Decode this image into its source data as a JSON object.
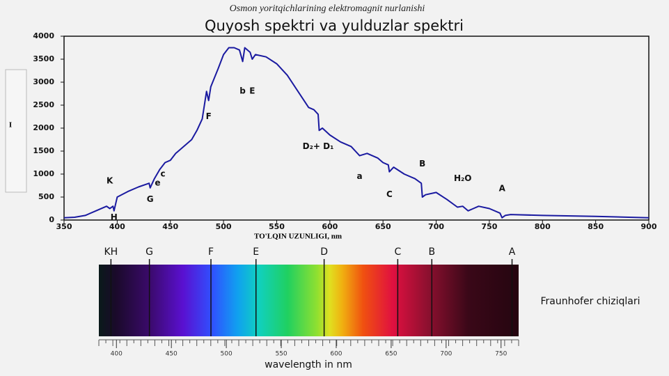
{
  "chart_data": [
    {
      "type": "line",
      "subtitle": "Osmon yoritqichlarining elektromagnit nurlanishi",
      "title": "Quyosh spektri va yulduzlar spektri",
      "x_label": "TO'LQIN UZUNLIGI, nm",
      "y_label": "I",
      "color": "#1a1aa0",
      "x": [
        350,
        360,
        370,
        380,
        390,
        393,
        396,
        397,
        400,
        410,
        420,
        430,
        431,
        435,
        440,
        445,
        450,
        455,
        460,
        470,
        475,
        480,
        484,
        486,
        488,
        495,
        500,
        505,
        510,
        515,
        518,
        520,
        525,
        527,
        530,
        540,
        550,
        560,
        570,
        580,
        585,
        589,
        590,
        593,
        600,
        610,
        620,
        628,
        635,
        645,
        650,
        655,
        656,
        660,
        670,
        680,
        686,
        687,
        690,
        700,
        710,
        720,
        725,
        730,
        735,
        740,
        750,
        760,
        762,
        765,
        770,
        800,
        850,
        900
      ],
      "values": [
        50,
        60,
        100,
        200,
        300,
        250,
        300,
        200,
        500,
        620,
        720,
        800,
        700,
        900,
        1100,
        1250,
        1300,
        1450,
        1550,
        1750,
        1950,
        2200,
        2800,
        2600,
        2900,
        3300,
        3600,
        3750,
        3750,
        3700,
        3450,
        3750,
        3650,
        3500,
        3600,
        3550,
        3400,
        3150,
        2800,
        2450,
        2400,
        2300,
        1950,
        2000,
        1850,
        1700,
        1600,
        1400,
        1450,
        1350,
        1250,
        1200,
        1050,
        1150,
        1000,
        900,
        800,
        500,
        550,
        600,
        450,
        280,
        300,
        200,
        250,
        300,
        250,
        150,
        50,
        100,
        120,
        100,
        80,
        50
      ],
      "xlim": [
        350,
        900
      ],
      "ylim": [
        0,
        4000
      ],
      "xticks": [
        350,
        400,
        450,
        500,
        550,
        600,
        650,
        700,
        750,
        800,
        850,
        900
      ],
      "yticks": [
        0,
        500,
        1000,
        1500,
        2000,
        2500,
        3000,
        3500,
        4000
      ],
      "annotations": [
        {
          "text": "K",
          "x": 393,
          "y": 850
        },
        {
          "text": "H",
          "x": 397,
          "y": 50
        },
        {
          "text": "G",
          "x": 431,
          "y": 450
        },
        {
          "text": "e",
          "x": 438,
          "y": 800
        },
        {
          "text": "c",
          "x": 443,
          "y": 1000
        },
        {
          "text": "F",
          "x": 486,
          "y": 2250
        },
        {
          "text": "b",
          "x": 518,
          "y": 2800
        },
        {
          "text": "E",
          "x": 527,
          "y": 2800
        },
        {
          "text": "D₂+ D₁",
          "x": 589,
          "y": 1600
        },
        {
          "text": "a",
          "x": 628,
          "y": 950
        },
        {
          "text": "C",
          "x": 656,
          "y": 550
        },
        {
          "text": "B",
          "x": 687,
          "y": 1220
        },
        {
          "text": "H₂O",
          "x": 725,
          "y": 900
        },
        {
          "text": "A",
          "x": 762,
          "y": 680
        }
      ]
    },
    {
      "type": "spectrum",
      "x_label": "wavelength in nm",
      "caption": "Fraunhofer chiziqlari",
      "xlim": [
        384,
        766
      ],
      "xticks": [
        400,
        450,
        500,
        550,
        600,
        650,
        700,
        750
      ],
      "lines": [
        {
          "label": "KH",
          "x": 395
        },
        {
          "label": "G",
          "x": 430
        },
        {
          "label": "F",
          "x": 486
        },
        {
          "label": "E",
          "x": 527
        },
        {
          "label": "D",
          "x": 589
        },
        {
          "label": "C",
          "x": 656
        },
        {
          "label": "B",
          "x": 687
        },
        {
          "label": "A",
          "x": 760
        }
      ]
    }
  ]
}
